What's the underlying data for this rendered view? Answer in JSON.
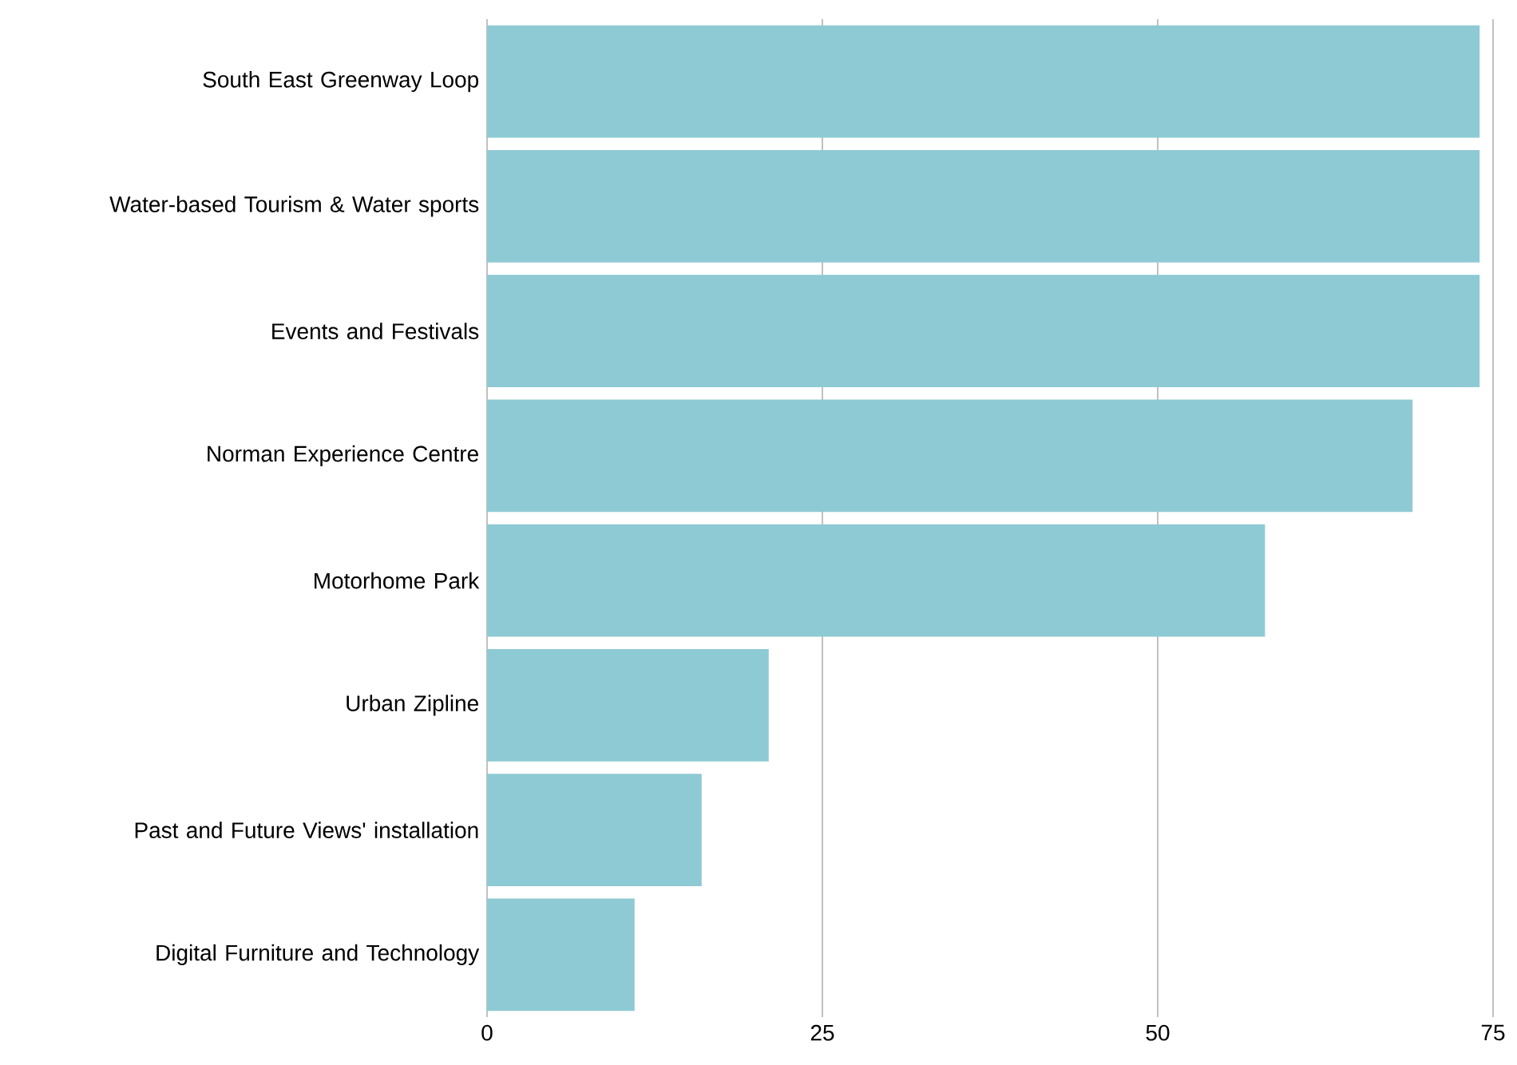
{
  "chart_data": {
    "type": "bar",
    "orientation": "horizontal",
    "categories": [
      "South East Greenway Loop",
      "Water-based Tourism & Water sports",
      "Events and Festivals",
      "Norman Experience Centre",
      "Motorhome Park",
      "Urban Zipline",
      "Past and Future Views' installation",
      "Digital Furniture and Technology"
    ],
    "values": [
      74,
      74,
      74,
      69,
      58,
      21,
      16,
      11
    ],
    "color": "#8ecad4",
    "xlim": [
      0,
      75
    ],
    "xticks": [
      0,
      25,
      50,
      75
    ],
    "grid": "x"
  }
}
